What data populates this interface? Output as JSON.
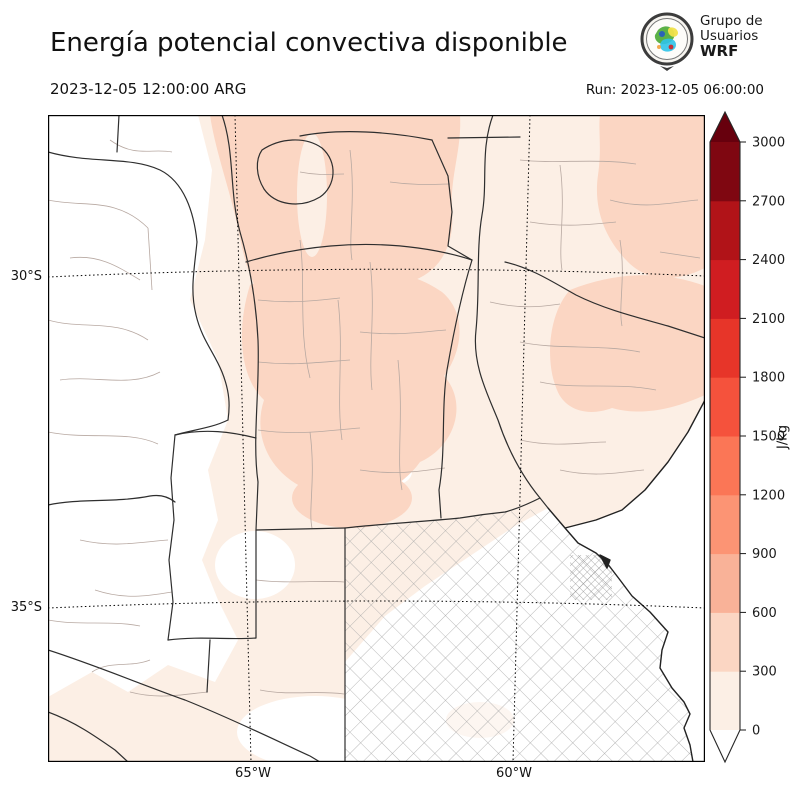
{
  "header": {
    "title": "Energía potencial convectiva disponible",
    "valid_time": "2023-12-05 12:00:00 ARG",
    "run_label": "Run: 2023-12-05 06:00:00"
  },
  "logo": {
    "line1": "Grupo de",
    "line2": "Usuarios",
    "line3": "WRF"
  },
  "axes": {
    "lat_ticks": [
      "30°S",
      "35°S"
    ],
    "lon_ticks": [
      "65°W",
      "60°W"
    ]
  },
  "colorbar": {
    "unit": "J/kg",
    "ticks": [
      "0",
      "300",
      "600",
      "900",
      "1200",
      "1500",
      "1800",
      "2100",
      "2400",
      "2700",
      "3000"
    ],
    "band_colors": [
      "#fcefe5",
      "#fbd6c3",
      "#f9b298",
      "#fc9474",
      "#fb7656",
      "#f5523c",
      "#e73529",
      "#d01d21",
      "#b11318",
      "#7f0711"
    ],
    "under_color": "#ffffff",
    "over_color": "#67000d",
    "outline_color": "#262626"
  },
  "chart_data": {
    "type": "filled_contour_map",
    "title": "Energía potencial convectiva disponible",
    "variable": "CAPE",
    "unit": "J/kg",
    "levels": [
      0,
      300,
      600,
      900,
      1200,
      1500,
      1800,
      2100,
      2400,
      2700,
      3000
    ],
    "palette": "Reds",
    "visible_value_range": [
      0,
      600
    ],
    "legend_position": "right",
    "gridlines": {
      "lat": [
        "30°S",
        "35°S"
      ],
      "lon": [
        "65°W",
        "60°W"
      ],
      "style": "dotted"
    }
  }
}
